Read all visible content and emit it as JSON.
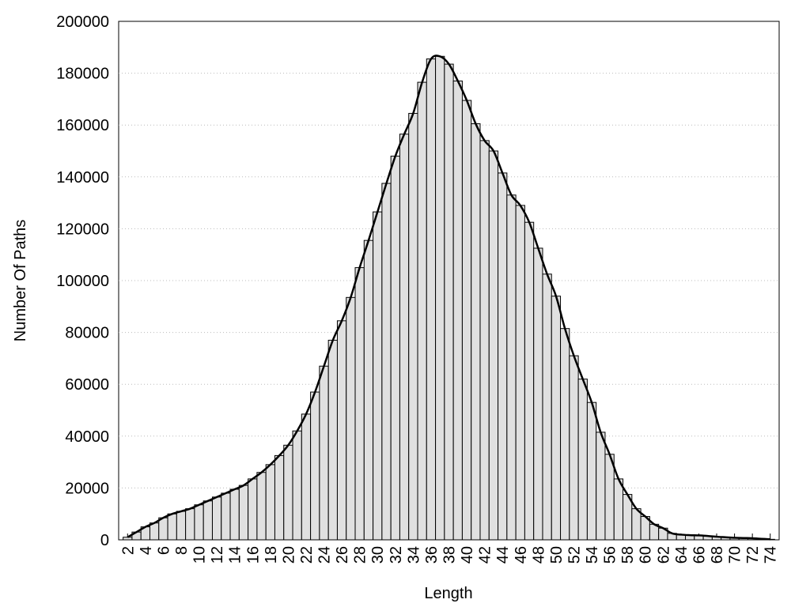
{
  "chart_data": {
    "type": "histogram",
    "xlabel": "Length",
    "ylabel": "Number Of Paths",
    "x": [
      2,
      3,
      4,
      5,
      6,
      7,
      8,
      9,
      10,
      11,
      12,
      13,
      14,
      15,
      16,
      17,
      18,
      19,
      20,
      21,
      22,
      23,
      24,
      25,
      26,
      27,
      28,
      29,
      30,
      31,
      32,
      33,
      34,
      35,
      36,
      37,
      38,
      39,
      40,
      41,
      42,
      43,
      44,
      45,
      46,
      47,
      48,
      49,
      50,
      51,
      52,
      53,
      54,
      55,
      56,
      57,
      58,
      59,
      60,
      61,
      62,
      63,
      64,
      65,
      66,
      67,
      68,
      69,
      70,
      71,
      72,
      73,
      74
    ],
    "values": [
      1000,
      3000,
      5000,
      6500,
      8500,
      10000,
      11000,
      12000,
      13500,
      15000,
      16500,
      18000,
      19500,
      21000,
      23500,
      26000,
      29000,
      32500,
      36500,
      42000,
      48500,
      57000,
      67000,
      77000,
      84500,
      93500,
      105000,
      115500,
      126500,
      137500,
      148000,
      156500,
      164500,
      176500,
      185500,
      186500,
      183500,
      177000,
      169500,
      160500,
      154000,
      150000,
      141500,
      133000,
      129000,
      122500,
      112500,
      102500,
      94000,
      81500,
      71000,
      62000,
      53000,
      41500,
      33000,
      23500,
      17500,
      12000,
      9000,
      6000,
      4500,
      2500,
      2000,
      1800,
      1700,
      1500,
      1200,
      1000,
      800,
      700,
      600,
      400,
      200
    ],
    "color": "#e0e0e0",
    "line_color": "#000000",
    "line": true,
    "xlim": [
      1,
      75
    ],
    "ylim": [
      0,
      200000
    ],
    "xticks": [
      2,
      4,
      6,
      8,
      10,
      12,
      14,
      16,
      18,
      20,
      22,
      24,
      26,
      28,
      30,
      32,
      34,
      36,
      38,
      40,
      42,
      44,
      46,
      48,
      50,
      52,
      54,
      56,
      58,
      60,
      62,
      64,
      66,
      68,
      70,
      72,
      74
    ],
    "yticks": [
      0,
      20000,
      40000,
      60000,
      80000,
      100000,
      120000,
      140000,
      160000,
      180000,
      200000
    ],
    "grid": true
  }
}
